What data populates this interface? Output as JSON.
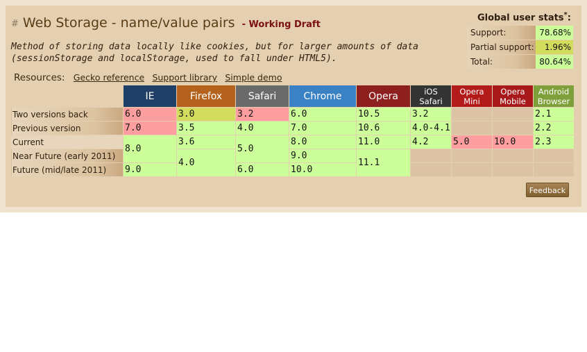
{
  "feature": {
    "hash": "#",
    "title": "Web Storage - name/value pairs",
    "separator": "-",
    "status": "Working Draft",
    "description": "Method of storing data locally like cookies, but for larger amounts of data (sessionStorage and localStorage, used to fall under HTML5)."
  },
  "resources": {
    "label": "Resources:",
    "links": [
      "Gecko reference",
      "Support library",
      "Simple demo"
    ]
  },
  "stats": {
    "title": "Global user stats",
    "asterisk": "*",
    "suffix": ":",
    "rows": [
      {
        "label": "Support:",
        "value": "78.68%",
        "color": "#ccff99"
      },
      {
        "label": "Partial support:",
        "value": "1.96%",
        "color": "#d3dc5c"
      },
      {
        "label": "Total:",
        "value": "80.64%",
        "color": "#ccff99"
      }
    ]
  },
  "browsers": [
    {
      "name": "IE",
      "color": "#1f3f66"
    },
    {
      "name": "Firefox",
      "color": "#b5621e"
    },
    {
      "name": "Safari",
      "color": "#6a6a6a"
    },
    {
      "name": "Chrome",
      "color": "#3a82c4"
    },
    {
      "name": "Opera",
      "color": "#8e1f1f"
    },
    {
      "name": "iOS Safari",
      "color": "#333333"
    },
    {
      "name": "Opera Mini",
      "color": "#b31b1b"
    },
    {
      "name": "Opera Mobile",
      "color": "#a8191b"
    },
    {
      "name": "Android Browser",
      "color": "#7ea03a"
    }
  ],
  "row_labels": [
    "Two versions back",
    "Previous version",
    "Current",
    "Near Future (early 2011)",
    "Future (mid/late 2011)"
  ],
  "cells": {
    "ie": [
      "6.0",
      "7.0",
      "8.0",
      "9.0"
    ],
    "firefox": [
      "3.0",
      "3.5",
      "3.6",
      "4.0"
    ],
    "safari": [
      "3.2",
      "4.0",
      "5.0",
      "6.0"
    ],
    "chrome": [
      "6.0",
      "7.0",
      "8.0",
      "9.0",
      "10.0"
    ],
    "opera": [
      "10.5",
      "10.6",
      "11.0",
      "11.1"
    ],
    "ios_safari": [
      "3.2",
      "4.0-4.1",
      "4.2"
    ],
    "opera_mini": [
      "5.0"
    ],
    "opera_mobile": [
      "10.0"
    ],
    "android": [
      "2.1",
      "2.2",
      "2.3"
    ]
  },
  "support_colors": {
    "yes": "#ccff99",
    "no": "#ff9e9e",
    "partial": "#d3dc5c",
    "unknown": "#dcc3a5"
  },
  "feedback": "Feedback"
}
